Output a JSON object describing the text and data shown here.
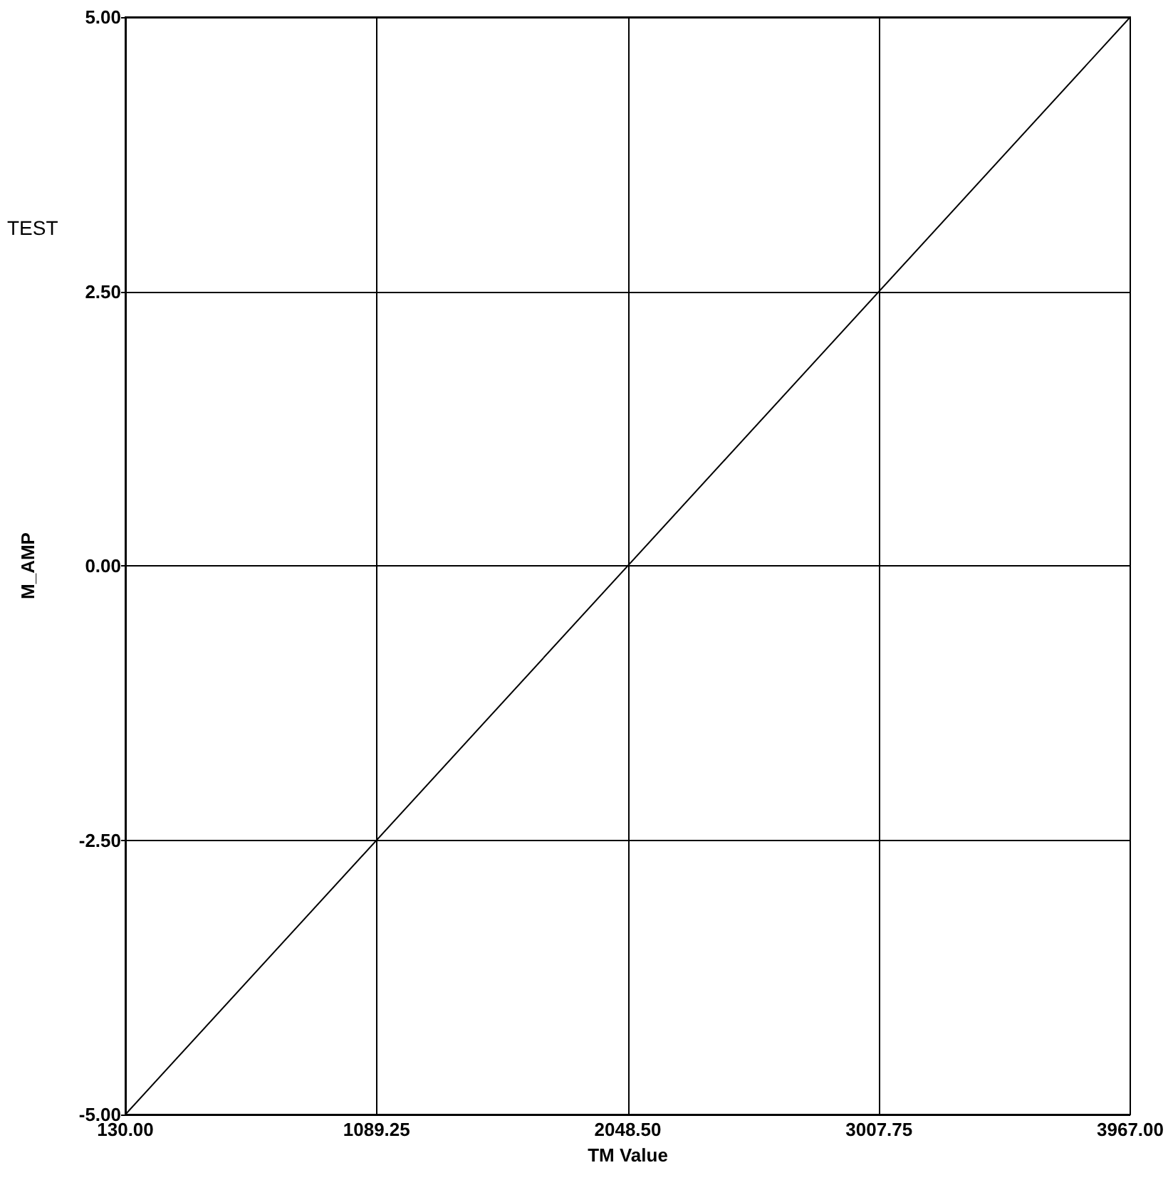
{
  "chart_data": {
    "type": "line",
    "title": "TEST",
    "xlabel": "TM Value",
    "ylabel": "M_AMP",
    "x": [
      130,
      3967
    ],
    "series": [
      {
        "color": "#000000",
        "values": [
          -5,
          5
        ]
      }
    ],
    "xlim": [
      130,
      3967
    ],
    "xticks": [
      {
        "value": 130,
        "label": "130.00"
      },
      {
        "value": 1089.25,
        "label": "1089.25"
      },
      {
        "value": 2048.5,
        "label": "2048.50"
      },
      {
        "value": 3007.75,
        "label": "3007.75"
      },
      {
        "value": 3967,
        "label": "3967.00"
      }
    ],
    "ylim": [
      -5,
      5
    ],
    "yticks": [
      {
        "value": -5,
        "label": "-5.00"
      },
      {
        "value": -2.5,
        "label": "-2.50"
      },
      {
        "value": 0,
        "label": "0.00"
      },
      {
        "value": 2.5,
        "label": "2.50"
      },
      {
        "value": 5,
        "label": "5.00"
      }
    ],
    "grid": true,
    "marker": "none",
    "line_style": "solid"
  }
}
